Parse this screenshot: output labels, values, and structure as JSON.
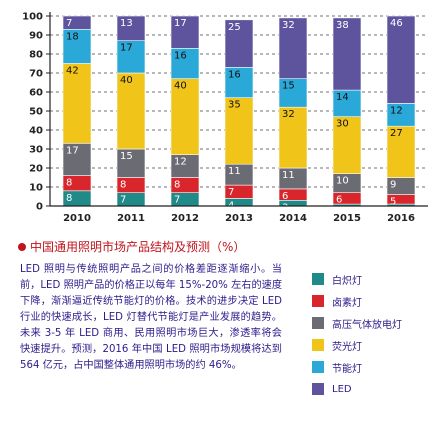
{
  "chart_data": {
    "type": "bar",
    "stacked": true,
    "categories": [
      "2010",
      "2011",
      "2012",
      "2013",
      "2014",
      "2015",
      "2016"
    ],
    "yticks": [
      "100",
      "90",
      "80",
      "70",
      "60",
      "50",
      "40",
      "30",
      "20",
      "10",
      "0"
    ],
    "ylim": [
      0,
      100
    ],
    "grid": true,
    "series": [
      {
        "name": "白炽灯",
        "color": "#1f8a87",
        "values": [
          8,
          7,
          7,
          4,
          3,
          1,
          1
        ]
      },
      {
        "name": "卤素灯",
        "color": "#d9262c",
        "values": [
          8,
          8,
          8,
          7,
          6,
          6,
          5
        ]
      },
      {
        "name": "高压气体放电灯",
        "color": "#6b6b73",
        "values": [
          17,
          15,
          12,
          11,
          11,
          10,
          9
        ]
      },
      {
        "name": "荧光灯",
        "color": "#f0c418",
        "values": [
          42,
          40,
          40,
          35,
          32,
          30,
          27
        ]
      },
      {
        "name": "节能灯",
        "color": "#2aa9d8",
        "values": [
          18,
          17,
          16,
          16,
          15,
          14,
          12
        ]
      },
      {
        "name": "LED",
        "color": "#5e549e",
        "values": [
          7,
          13,
          17,
          25,
          32,
          38,
          46
        ]
      }
    ],
    "title": "中国通用照明市场产品结构及预测（%）"
  },
  "caption": {
    "title": "中国通用照明市场产品结构及预测（%）"
  },
  "paragraph": "LED 照明与传统照明产品之间的价格差距逐渐缩小。当前，LED 照明产品的价格正以每年 15%-20% 左右的速度下降，渐渐逼近传统节能灯的价格。技术的进步决定 LED 行业的快速成长，LED 灯替代节能灯是产业发展的趋势。未来 3-5 年 LED 商用、民用照明市场巨大，渗透率将会快速提升。预测，2016 年中国 LED 照明市场规模将达到 564 亿元，占中国整体通用照明市场的约 46%。",
  "legend": [
    {
      "label": "白炽灯",
      "color": "#1f8a87"
    },
    {
      "label": "卤素灯",
      "color": "#d9262c"
    },
    {
      "label": "高压气体放电灯",
      "color": "#6b6b73"
    },
    {
      "label": "荧光灯",
      "color": "#f0c418"
    },
    {
      "label": "节能灯",
      "color": "#2aa9d8"
    },
    {
      "label": "LED",
      "color": "#5e549e"
    }
  ]
}
